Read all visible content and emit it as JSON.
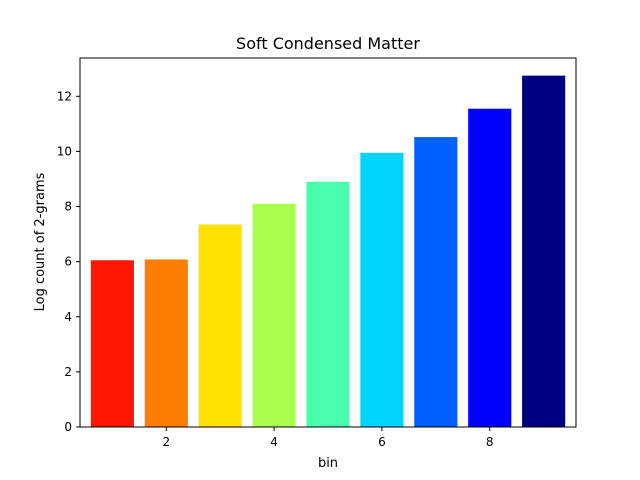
{
  "chart_data": {
    "type": "bar",
    "title": "Soft Condensed Matter",
    "xlabel": "bin",
    "ylabel": "Log count of 2-grams",
    "x": [
      1,
      2,
      3,
      4,
      5,
      6,
      7,
      8,
      9
    ],
    "values": [
      6.05,
      6.08,
      7.35,
      8.1,
      8.9,
      9.95,
      10.52,
      11.55,
      12.75
    ],
    "colors": [
      "#ff1500",
      "#ff7d00",
      "#ffe100",
      "#a9ff4d",
      "#49ffad",
      "#00d4ff",
      "#0060ff",
      "#0000ff",
      "#000080"
    ],
    "xlim": [
      0.4,
      9.6
    ],
    "ylim": [
      0,
      13.39
    ],
    "xticks": [
      2,
      4,
      6,
      8
    ],
    "yticks": [
      0,
      2,
      4,
      6,
      8,
      10,
      12
    ],
    "bar_width": 0.8,
    "grid": false,
    "legend": false
  }
}
